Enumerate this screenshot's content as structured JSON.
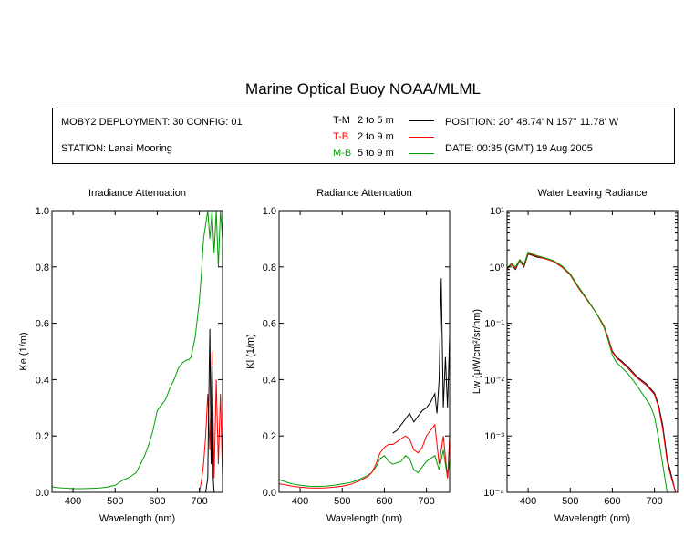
{
  "title": "Marine Optical Buoy NOAA/MLML",
  "info": {
    "deployment": "MOBY2 DEPLOYMENT: 30 CONFIG: 01",
    "station": "STATION: Lanai Mooring",
    "position": "POSITION: 20° 48.74' N   157° 11.78' W",
    "date": "DATE: 00:35 (GMT) 19 Aug 2005",
    "legend": [
      {
        "code": "T-M",
        "range": "2 to 5  m",
        "color": "#000000"
      },
      {
        "code": "T-B",
        "range": "2 to 9  m",
        "color": "#ff0000"
      },
      {
        "code": "M-B",
        "range": "5 to 9  m",
        "color": "#00a000"
      }
    ]
  },
  "chart_data": [
    {
      "type": "line",
      "title": "Irradiance Attenuation",
      "xlabel": "Wavelength (nm)",
      "ylabel": "Ke  (1/m)",
      "xlim": [
        350,
        755
      ],
      "ylim": [
        0,
        1.0
      ],
      "yscale": "linear",
      "xticks": [
        400,
        500,
        600,
        700
      ],
      "yticks": [
        0.0,
        0.2,
        0.4,
        0.6,
        0.8,
        1.0
      ],
      "ytick_labels": [
        "0.0",
        "0.2",
        "0.4",
        "0.6",
        "0.8",
        "1.0"
      ],
      "series": [
        {
          "name": "M-B",
          "color": "#00a000",
          "x": [
            350,
            360,
            380,
            400,
            420,
            440,
            460,
            480,
            500,
            510,
            520,
            530,
            540,
            550,
            560,
            570,
            580,
            590,
            600,
            605,
            610,
            620,
            630,
            640,
            650,
            660,
            670,
            675,
            680,
            690,
            700,
            705,
            710,
            715,
            720,
            725,
            730,
            735,
            740,
            745,
            750,
            755
          ],
          "y": [
            0.02,
            0.017,
            0.015,
            0.013,
            0.013,
            0.014,
            0.015,
            0.018,
            0.025,
            0.035,
            0.045,
            0.05,
            0.06,
            0.07,
            0.1,
            0.13,
            0.17,
            0.22,
            0.29,
            0.3,
            0.31,
            0.33,
            0.37,
            0.4,
            0.44,
            0.46,
            0.47,
            0.47,
            0.48,
            0.55,
            0.68,
            0.78,
            0.9,
            0.95,
            1.0,
            0.9,
            1.0,
            0.85,
            1.0,
            0.8,
            1.0,
            0.9
          ]
        },
        {
          "name": "T-B",
          "color": "#ff0000",
          "x": [
            700,
            705,
            710,
            715,
            720,
            725,
            730,
            735,
            740,
            745,
            750,
            755
          ],
          "y": [
            0.0,
            0.04,
            0.1,
            0.2,
            0.35,
            0.15,
            0.5,
            0.05,
            0.4,
            0.1,
            0.35,
            0.05
          ]
        },
        {
          "name": "T-M",
          "color": "#000000",
          "x": [
            715,
            720,
            722,
            725,
            728,
            730,
            733,
            735
          ],
          "y": [
            0.0,
            0.05,
            0.3,
            0.58,
            0.1,
            0.45,
            0.05,
            0.0
          ]
        }
      ]
    },
    {
      "type": "line",
      "title": "Radiance Attenuation",
      "xlabel": "Wavelength (nm)",
      "ylabel": "Kl  (1/m)",
      "xlim": [
        350,
        755
      ],
      "ylim": [
        0,
        1.0
      ],
      "yscale": "linear",
      "xticks": [
        400,
        500,
        600,
        700
      ],
      "yticks": [
        0.0,
        0.2,
        0.4,
        0.6,
        0.8,
        1.0
      ],
      "ytick_labels": [
        "0.0",
        "0.2",
        "0.4",
        "0.6",
        "0.8",
        "1.0"
      ],
      "series": [
        {
          "name": "M-B",
          "color": "#00a000",
          "x": [
            350,
            360,
            380,
            400,
            420,
            440,
            460,
            480,
            500,
            520,
            540,
            560,
            570,
            580,
            590,
            600,
            610,
            620,
            630,
            640,
            650,
            660,
            670,
            680,
            690,
            700,
            710,
            720,
            730,
            740,
            750,
            755
          ],
          "y": [
            0.045,
            0.04,
            0.03,
            0.025,
            0.022,
            0.021,
            0.022,
            0.025,
            0.03,
            0.035,
            0.045,
            0.06,
            0.07,
            0.09,
            0.12,
            0.13,
            0.11,
            0.1,
            0.105,
            0.11,
            0.13,
            0.12,
            0.08,
            0.07,
            0.09,
            0.11,
            0.12,
            0.13,
            0.08,
            0.15,
            0.05,
            0.12
          ]
        },
        {
          "name": "T-B",
          "color": "#ff0000",
          "x": [
            350,
            360,
            380,
            400,
            420,
            440,
            460,
            480,
            500,
            520,
            540,
            560,
            570,
            580,
            590,
            600,
            610,
            620,
            630,
            640,
            650,
            660,
            670,
            680,
            690,
            700,
            710,
            720,
            730,
            740,
            750,
            755
          ],
          "y": [
            0.03,
            0.028,
            0.022,
            0.018,
            0.016,
            0.015,
            0.016,
            0.018,
            0.022,
            0.028,
            0.04,
            0.055,
            0.07,
            0.1,
            0.14,
            0.16,
            0.17,
            0.17,
            0.18,
            0.19,
            0.2,
            0.19,
            0.15,
            0.14,
            0.16,
            0.2,
            0.22,
            0.24,
            0.1,
            0.2,
            0.05,
            0.2
          ]
        },
        {
          "name": "T-M",
          "color": "#000000",
          "x": [
            620,
            630,
            640,
            650,
            660,
            670,
            680,
            690,
            700,
            710,
            720,
            725,
            730,
            735,
            740,
            745,
            750,
            755
          ],
          "y": [
            0.21,
            0.22,
            0.24,
            0.26,
            0.28,
            0.25,
            0.27,
            0.29,
            0.3,
            0.32,
            0.35,
            0.28,
            0.4,
            0.76,
            0.3,
            0.48,
            0.3,
            0.56
          ]
        }
      ]
    },
    {
      "type": "line",
      "title": "Water Leaving Radiance",
      "xlabel": "Wavelength (nm)",
      "ylabel": "Lw  (μW/cm²/sr/nm)",
      "xlim": [
        350,
        755
      ],
      "ylim": [
        0.0001,
        10
      ],
      "yscale": "log",
      "xticks": [
        400,
        500,
        600,
        700
      ],
      "yticks": [
        0.0001,
        0.001,
        0.01,
        0.1,
        1,
        10
      ],
      "ytick_labels": [
        "10⁻⁴",
        "10⁻³",
        "10⁻²",
        "10⁻¹",
        "10⁰",
        "10¹"
      ],
      "series": [
        {
          "name": "T-M",
          "color": "#000000",
          "x": [
            350,
            360,
            370,
            380,
            390,
            400,
            410,
            420,
            440,
            460,
            480,
            500,
            520,
            540,
            560,
            580,
            590,
            600,
            610,
            620,
            640,
            660,
            680,
            690,
            700,
            710,
            720,
            730,
            740,
            750
          ],
          "y": [
            0.9,
            1.1,
            0.9,
            1.3,
            1.0,
            1.7,
            1.6,
            1.5,
            1.4,
            1.25,
            1.0,
            0.72,
            0.42,
            0.26,
            0.16,
            0.09,
            0.055,
            0.032,
            0.025,
            0.022,
            0.016,
            0.011,
            0.0085,
            0.007,
            0.0058,
            0.0035,
            0.0015,
            0.0004,
            0.0002,
            0.0001
          ]
        },
        {
          "name": "T-B",
          "color": "#ff0000",
          "x": [
            350,
            360,
            370,
            380,
            390,
            400,
            410,
            420,
            440,
            460,
            480,
            500,
            520,
            540,
            560,
            580,
            590,
            600,
            610,
            620,
            640,
            660,
            680,
            690,
            700,
            710,
            720,
            730,
            740,
            750
          ],
          "y": [
            0.9,
            1.1,
            0.95,
            1.3,
            1.05,
            1.75,
            1.65,
            1.55,
            1.4,
            1.25,
            1.0,
            0.72,
            0.42,
            0.26,
            0.16,
            0.09,
            0.055,
            0.031,
            0.024,
            0.021,
            0.015,
            0.0105,
            0.008,
            0.0066,
            0.0054,
            0.0032,
            0.0013,
            0.00035,
            0.00018,
            0.0001
          ]
        },
        {
          "name": "M-B",
          "color": "#00a000",
          "x": [
            350,
            360,
            370,
            380,
            390,
            400,
            410,
            420,
            440,
            460,
            480,
            500,
            520,
            540,
            560,
            580,
            590,
            600,
            610,
            620,
            640,
            660,
            680,
            690,
            700,
            710,
            720,
            730,
            740
          ],
          "y": [
            0.95,
            1.15,
            1.0,
            1.35,
            1.1,
            1.85,
            1.7,
            1.6,
            1.45,
            1.3,
            1.05,
            0.75,
            0.44,
            0.27,
            0.16,
            0.085,
            0.05,
            0.027,
            0.02,
            0.017,
            0.012,
            0.0075,
            0.0045,
            0.0035,
            0.0022,
            0.0009,
            0.0003,
            0.0001,
            0.0001
          ]
        }
      ]
    }
  ]
}
